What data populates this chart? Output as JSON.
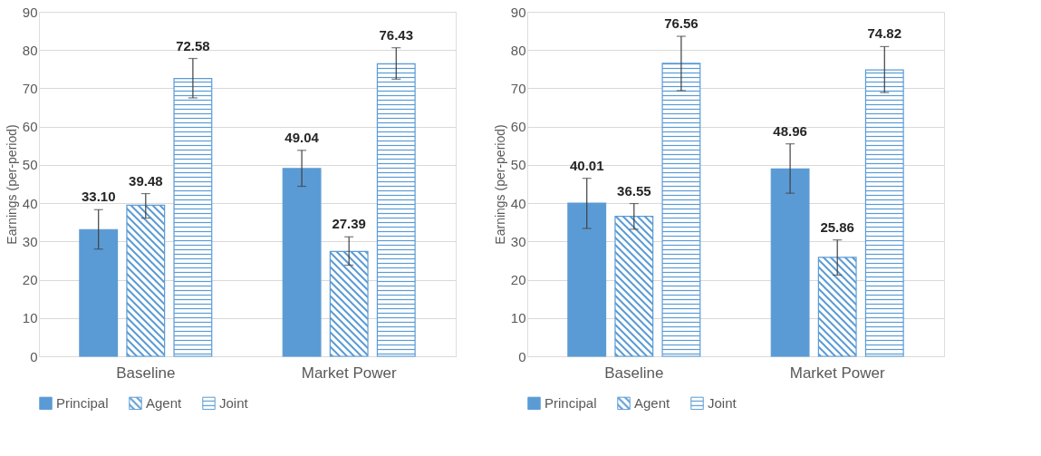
{
  "chart_data": [
    {
      "type": "bar",
      "ylabel": "Earnings (per-period)",
      "categories": [
        "Baseline",
        "Market Power"
      ],
      "ylim": [
        0,
        90
      ],
      "yticks": [
        0,
        10,
        20,
        30,
        40,
        50,
        60,
        70,
        80,
        90
      ],
      "grid": "y",
      "legend": "bottom",
      "series": [
        {
          "name": "Principal",
          "color": "#5b9bd5",
          "values": [
            33.1,
            49.04
          ],
          "value_labels": [
            "33.10",
            "49.04"
          ],
          "errors": [
            [
              28.0,
              38.3
            ],
            [
              44.4,
              53.8
            ]
          ]
        },
        {
          "name": "Agent",
          "color": "#5b9bd5",
          "values": [
            39.48,
            27.39
          ],
          "value_labels": [
            "39.48",
            "27.39"
          ],
          "errors": [
            [
              36.1,
              42.5
            ],
            [
              23.8,
              31.2
            ]
          ]
        },
        {
          "name": "Joint",
          "color": "#5b9bd5",
          "values": [
            72.58,
            76.43
          ],
          "value_labels": [
            "72.58",
            "76.43"
          ],
          "errors": [
            [
              67.5,
              77.8
            ],
            [
              72.4,
              80.6
            ]
          ]
        }
      ]
    },
    {
      "type": "bar",
      "ylabel": "Earnings (per-period)",
      "categories": [
        "Baseline",
        "Market Power"
      ],
      "ylim": [
        0,
        90
      ],
      "yticks": [
        0,
        10,
        20,
        30,
        40,
        50,
        60,
        70,
        80,
        90
      ],
      "grid": "y",
      "legend": "bottom",
      "series": [
        {
          "name": "Principal",
          "color": "#5b9bd5",
          "values": [
            40.01,
            48.96
          ],
          "value_labels": [
            "40.01",
            "48.96"
          ],
          "errors": [
            [
              33.4,
              46.5
            ],
            [
              42.6,
              55.5
            ]
          ]
        },
        {
          "name": "Agent",
          "color": "#5b9bd5",
          "values": [
            36.55,
            25.86
          ],
          "value_labels": [
            "36.55",
            "25.86"
          ],
          "errors": [
            [
              33.2,
              39.9
            ],
            [
              21.2,
              30.4
            ]
          ]
        },
        {
          "name": "Joint",
          "color": "#5b9bd5",
          "values": [
            76.56,
            74.82
          ],
          "value_labels": [
            "76.56",
            "74.82"
          ],
          "errors": [
            [
              69.4,
              83.6
            ],
            [
              68.9,
              80.9
            ]
          ]
        }
      ]
    }
  ]
}
